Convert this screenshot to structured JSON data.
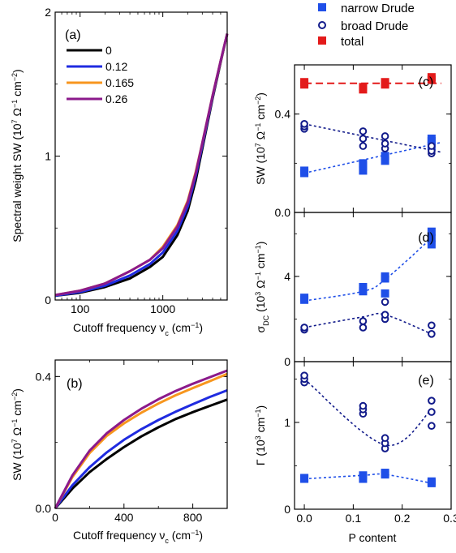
{
  "colors": {
    "c0": "#000000",
    "c012": "#1f2be0",
    "c0165": "#f7961e",
    "c026": "#8b1a8b",
    "narrow": "#1f4fe8",
    "broad": "#111a8a",
    "total": "#e31a1a"
  },
  "chart_data": [
    {
      "id": "a",
      "type": "line",
      "panel_label": "(a)",
      "x_scale": "log",
      "xlim": [
        50,
        6000
      ],
      "ylim": [
        0,
        2
      ],
      "xlabel": "Cutoff frequency ν",
      "xlabel_sub": "c",
      "xlabel_unit": " (cm",
      "xlabel_exp": "−1",
      "xlabel_tail": ")",
      "ylabel": "Spectral weight SW (10",
      "ylabel_exp1": "7",
      "ylabel_mid": " Ω",
      "ylabel_exp2": "−1",
      "ylabel_mid2": " cm",
      "ylabel_exp3": "−2",
      "ylabel_tail": ")",
      "x_ticks": [
        {
          "v": 100,
          "label": "100"
        },
        {
          "v": 1000,
          "label": "1000"
        }
      ],
      "y_ticks": [
        {
          "v": 0,
          "label": "0"
        },
        {
          "v": 1,
          "label": "1"
        },
        {
          "v": 2,
          "label": "2"
        }
      ],
      "legend": [
        "0",
        "0.12",
        "0.165",
        "0.26"
      ],
      "series": [
        {
          "name": "0",
          "x": [
            50,
            100,
            200,
            400,
            700,
            1000,
            1500,
            2000,
            2500,
            3000,
            4000,
            5000,
            6000
          ],
          "y": [
            0.03,
            0.05,
            0.09,
            0.15,
            0.23,
            0.3,
            0.45,
            0.62,
            0.83,
            1.05,
            1.4,
            1.65,
            1.85
          ]
        },
        {
          "name": "0.12",
          "x": [
            50,
            100,
            200,
            400,
            700,
            1000,
            1500,
            2000,
            2500,
            3000,
            4000,
            5000,
            6000
          ],
          "y": [
            0.03,
            0.055,
            0.1,
            0.17,
            0.25,
            0.33,
            0.48,
            0.65,
            0.86,
            1.07,
            1.41,
            1.66,
            1.85
          ]
        },
        {
          "name": "0.165",
          "x": [
            50,
            100,
            200,
            400,
            700,
            1000,
            1500,
            2000,
            2500,
            3000,
            4000,
            5000,
            6000
          ],
          "y": [
            0.035,
            0.065,
            0.115,
            0.2,
            0.28,
            0.37,
            0.52,
            0.69,
            0.89,
            1.09,
            1.42,
            1.66,
            1.85
          ]
        },
        {
          "name": "0.26",
          "x": [
            50,
            100,
            200,
            400,
            700,
            1000,
            1500,
            2000,
            2500,
            3000,
            4000,
            5000,
            6000
          ],
          "y": [
            0.035,
            0.065,
            0.115,
            0.2,
            0.28,
            0.36,
            0.51,
            0.68,
            0.88,
            1.09,
            1.42,
            1.66,
            1.85
          ]
        }
      ]
    },
    {
      "id": "b",
      "type": "line",
      "panel_label": "(b)",
      "xlim": [
        0,
        1000
      ],
      "ylim": [
        0,
        0.45
      ],
      "xlabel": "Cutoff frequency ν",
      "xlabel_sub": "c",
      "xlabel_unit": " (cm",
      "xlabel_exp": "−1",
      "xlabel_tail": ")",
      "ylabel": "SW (10",
      "ylabel_exp1": "7",
      "ylabel_mid": " Ω",
      "ylabel_exp2": "−1",
      "ylabel_mid2": " cm",
      "ylabel_exp3": "−2",
      "ylabel_tail": ")",
      "x_ticks": [
        {
          "v": 0,
          "label": "0"
        },
        {
          "v": 400,
          "label": "400"
        },
        {
          "v": 800,
          "label": "800"
        }
      ],
      "y_ticks": [
        {
          "v": 0,
          "label": "0.0"
        },
        {
          "v": 0.4,
          "label": "0.4"
        }
      ],
      "series": [
        {
          "name": "0",
          "x": [
            0,
            100,
            200,
            300,
            400,
            500,
            600,
            700,
            800,
            900,
            1000
          ],
          "y": [
            0,
            0.06,
            0.11,
            0.15,
            0.186,
            0.218,
            0.246,
            0.271,
            0.292,
            0.311,
            0.33
          ]
        },
        {
          "name": "0.12",
          "x": [
            0,
            100,
            200,
            300,
            400,
            500,
            600,
            700,
            800,
            900,
            1000
          ],
          "y": [
            0,
            0.07,
            0.125,
            0.17,
            0.208,
            0.24,
            0.268,
            0.293,
            0.316,
            0.338,
            0.358
          ]
        },
        {
          "name": "0.165",
          "x": [
            0,
            100,
            200,
            300,
            400,
            500,
            600,
            700,
            800,
            900,
            1000
          ],
          "y": [
            0,
            0.095,
            0.168,
            0.22,
            0.258,
            0.29,
            0.318,
            0.343,
            0.365,
            0.386,
            0.408
          ]
        },
        {
          "name": "0.26",
          "x": [
            0,
            100,
            200,
            300,
            400,
            500,
            600,
            700,
            800,
            900,
            1000
          ],
          "y": [
            0,
            0.1,
            0.175,
            0.228,
            0.268,
            0.302,
            0.331,
            0.356,
            0.378,
            0.398,
            0.418
          ]
        }
      ]
    },
    {
      "id": "c",
      "type": "scatter",
      "panel_label": "(c)",
      "xlim": [
        -0.02,
        0.3
      ],
      "ylim": [
        0,
        0.6
      ],
      "ylabel": "SW (10",
      "ylabel_exp1": "7",
      "ylabel_mid": " Ω",
      "ylabel_exp2": "−1",
      "ylabel_mid2": " cm",
      "ylabel_exp3": "−2",
      "ylabel_tail": ")",
      "y_ticks": [
        {
          "v": 0,
          "label": "0.0"
        },
        {
          "v": 0.4,
          "label": "0.4"
        }
      ],
      "legend": [
        "narrow Drude",
        "broad Drude",
        "total"
      ],
      "series": [
        {
          "name": "narrow Drude",
          "points": [
            [
              0,
              0.16
            ],
            [
              0,
              0.17
            ],
            [
              0.12,
              0.17
            ],
            [
              0.12,
              0.19
            ],
            [
              0.12,
              0.2
            ],
            [
              0.165,
              0.21
            ],
            [
              0.165,
              0.23
            ],
            [
              0.26,
              0.27
            ],
            [
              0.26,
              0.29
            ],
            [
              0.26,
              0.3
            ]
          ],
          "fit_x": [
            0,
            0.28
          ],
          "fit_y": [
            0.16,
            0.285
          ]
        },
        {
          "name": "broad Drude",
          "points": [
            [
              0,
              0.34
            ],
            [
              0,
              0.35
            ],
            [
              0,
              0.36
            ],
            [
              0.12,
              0.27
            ],
            [
              0.12,
              0.3
            ],
            [
              0.12,
              0.33
            ],
            [
              0.165,
              0.26
            ],
            [
              0.165,
              0.28
            ],
            [
              0.165,
              0.31
            ],
            [
              0.26,
              0.24
            ],
            [
              0.26,
              0.25
            ],
            [
              0.26,
              0.27
            ]
          ],
          "fit_x": [
            0,
            0.28
          ],
          "fit_y": [
            0.36,
            0.245
          ]
        },
        {
          "name": "total",
          "points": [
            [
              0,
              0.52
            ],
            [
              0,
              0.53
            ],
            [
              0.12,
              0.5
            ],
            [
              0.12,
              0.51
            ],
            [
              0.165,
              0.52
            ],
            [
              0.165,
              0.53
            ],
            [
              0.26,
              0.54
            ],
            [
              0.26,
              0.55
            ]
          ],
          "fit_x": [
            0,
            0.28
          ],
          "fit_y": [
            0.525,
            0.525
          ]
        }
      ]
    },
    {
      "id": "d",
      "type": "scatter",
      "panel_label": "(d)",
      "xlim": [
        -0.02,
        0.3
      ],
      "ylim": [
        0,
        7
      ],
      "ylabel": "σ",
      "ylabel_sub": "DC",
      "ylabel_mid": " (10",
      "ylabel_exp1": "3",
      "ylabel_mid2": " Ω",
      "ylabel_exp2": "−1",
      "ylabel_mid3": " cm",
      "ylabel_exp3": "−1",
      "ylabel_tail": ")",
      "y_ticks": [
        {
          "v": 0,
          "label": "0"
        },
        {
          "v": 4,
          "label": "4"
        }
      ],
      "series": [
        {
          "name": "narrow Drude",
          "points": [
            [
              0,
              2.9
            ],
            [
              0,
              3.0
            ],
            [
              0.12,
              3.3
            ],
            [
              0.12,
              3.5
            ],
            [
              0.165,
              3.2
            ],
            [
              0.165,
              3.9
            ],
            [
              0.165,
              4.0
            ],
            [
              0.26,
              5.5
            ],
            [
              0.26,
              5.8
            ],
            [
              0.26,
              6.1
            ]
          ],
          "fit_x": [
            0,
            0.12,
            0.165,
            0.26
          ],
          "fit_y": [
            2.85,
            3.3,
            3.85,
            5.8
          ]
        },
        {
          "name": "broad Drude",
          "points": [
            [
              0,
              1.5
            ],
            [
              0,
              1.6
            ],
            [
              0.12,
              1.6
            ],
            [
              0.12,
              1.9
            ],
            [
              0.165,
              2.0
            ],
            [
              0.165,
              2.2
            ],
            [
              0.165,
              2.8
            ],
            [
              0.26,
              1.3
            ],
            [
              0.26,
              1.7
            ]
          ],
          "fit_x": [
            0,
            0.12,
            0.165,
            0.26
          ],
          "fit_y": [
            1.6,
            2.1,
            2.2,
            1.3
          ]
        }
      ]
    },
    {
      "id": "e",
      "type": "scatter",
      "panel_label": "(e)",
      "xlim": [
        -0.02,
        0.3
      ],
      "ylim": [
        0,
        1.7
      ],
      "xlabel": "P content",
      "ylabel": "Γ (10",
      "ylabel_exp1": "3",
      "ylabel_mid": " cm",
      "ylabel_exp2": "−1",
      "ylabel_tail": ")",
      "x_ticks": [
        {
          "v": 0,
          "label": "0.0"
        },
        {
          "v": 0.1,
          "label": "0.1"
        },
        {
          "v": 0.2,
          "label": "0.2"
        },
        {
          "v": 0.3,
          "label": "0.3"
        }
      ],
      "y_ticks": [
        {
          "v": 0,
          "label": "0"
        },
        {
          "v": 1,
          "label": "1"
        }
      ],
      "series": [
        {
          "name": "narrow Drude",
          "points": [
            [
              0,
              0.35
            ],
            [
              0,
              0.36
            ],
            [
              0.12,
              0.35
            ],
            [
              0.12,
              0.39
            ],
            [
              0.165,
              0.4
            ],
            [
              0.165,
              0.42
            ],
            [
              0.26,
              0.3
            ],
            [
              0.26,
              0.32
            ]
          ],
          "fit_x": [
            0,
            0.12,
            0.165,
            0.26
          ],
          "fit_y": [
            0.35,
            0.39,
            0.4,
            0.3
          ]
        },
        {
          "name": "broad Drude",
          "points": [
            [
              0,
              1.46
            ],
            [
              0,
              1.5
            ],
            [
              0,
              1.54
            ],
            [
              0.12,
              1.1
            ],
            [
              0.12,
              1.15
            ],
            [
              0.12,
              1.19
            ],
            [
              0.165,
              0.7
            ],
            [
              0.165,
              0.76
            ],
            [
              0.165,
              0.82
            ],
            [
              0.26,
              0.96
            ],
            [
              0.26,
              1.12
            ],
            [
              0.26,
              1.25
            ]
          ],
          "fit_x": [
            0,
            0.165,
            0.26
          ],
          "fit_y": [
            1.5,
            0.74,
            1.15
          ]
        }
      ]
    }
  ]
}
